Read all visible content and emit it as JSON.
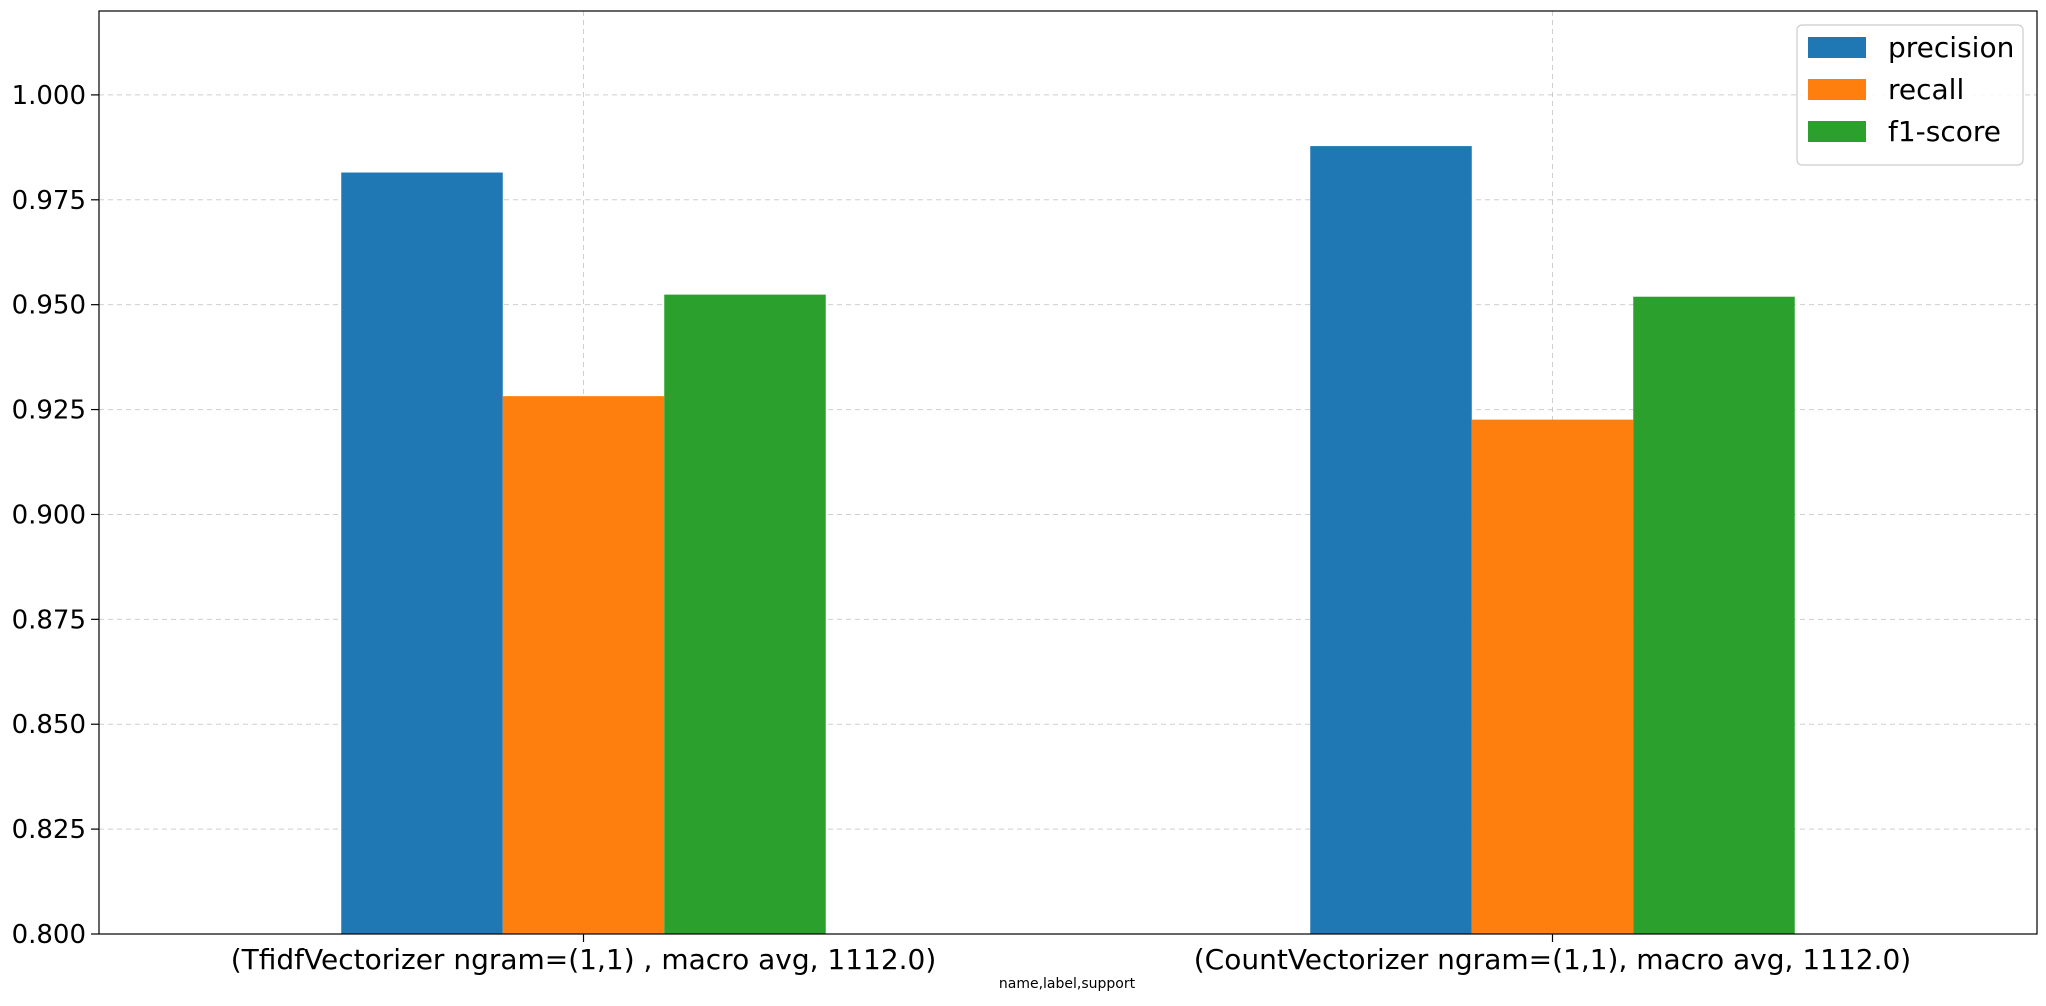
{
  "chart_data": {
    "type": "bar",
    "title": "",
    "xlabel": "name,label,support",
    "ylabel": "",
    "categories": [
      "(TfidfVectorizer ngram=(1,1) , macro avg, 1112.0)",
      "(CountVectorizer ngram=(1,1), macro avg, 1112.0)"
    ],
    "series": [
      {
        "name": "precision",
        "color": "#1f77b4",
        "values": [
          0.9815,
          0.9878
        ]
      },
      {
        "name": "recall",
        "color": "#ff7f0e",
        "values": [
          0.9282,
          0.9226
        ]
      },
      {
        "name": "f1-score",
        "color": "#2ca02c",
        "values": [
          0.9524,
          0.9519
        ]
      }
    ],
    "ylim": [
      0.8,
      1.02
    ],
    "yticks": [
      0.8,
      0.825,
      0.85,
      0.875,
      0.9,
      0.925,
      0.95,
      0.975,
      1.0
    ],
    "ytick_labels": [
      "0.800",
      "0.825",
      "0.850",
      "0.875",
      "0.900",
      "0.925",
      "0.950",
      "0.975",
      "1.000"
    ],
    "grid": true,
    "legend_position": "top-right"
  }
}
